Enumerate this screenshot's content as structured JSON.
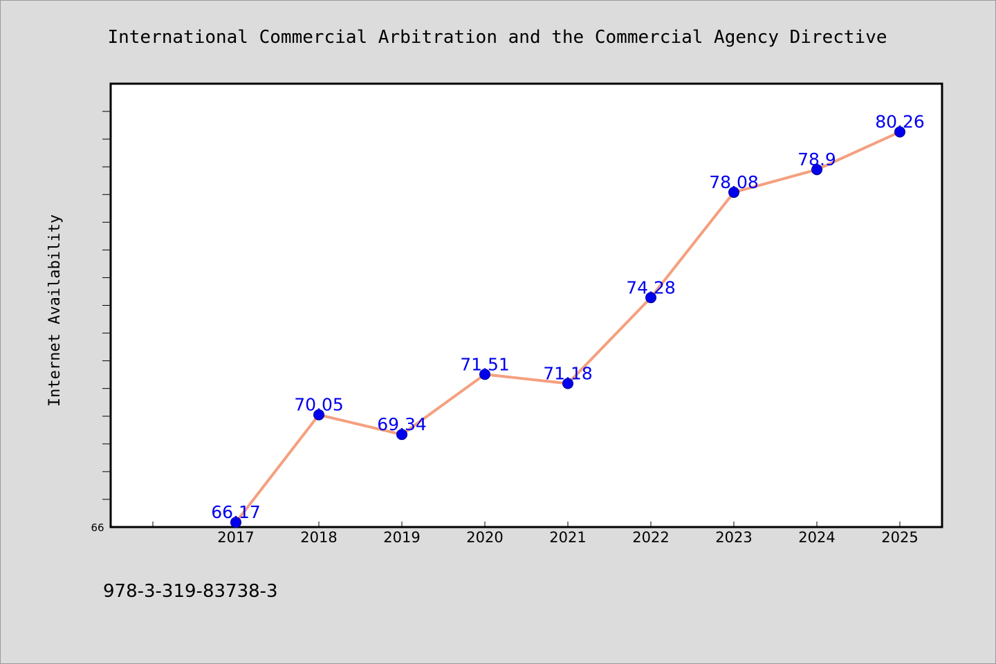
{
  "chart_data": {
    "type": "line",
    "title": "International Commercial Arbitration and the Commercial Agency Directive",
    "xlabel": "",
    "ylabel": "Internet Availability",
    "categories": [
      "2017",
      "2018",
      "2019",
      "2020",
      "2021",
      "2022",
      "2023",
      "2024",
      "2025"
    ],
    "series": [
      {
        "values": [
          66.17,
          70.05,
          69.34,
          71.51,
          71.18,
          74.28,
          78.08,
          78.9,
          80.26
        ],
        "data_labels": [
          "66.17",
          "70.05",
          "69.34",
          "71.51",
          "71.18",
          "74.28",
          "78.08",
          "78.9",
          "80.26"
        ],
        "line_color": "#f4a07f",
        "marker_color": "#0000ee"
      }
    ],
    "ylim": [
      66,
      82
    ],
    "ytick_labels": [
      "66"
    ],
    "grid": false,
    "legend": "none"
  },
  "footer": {
    "isbn": "978-3-319-83738-3"
  },
  "colors": {
    "background": "#dcdcdc",
    "plot_area": "#ffffff",
    "label_color": "#0000ee"
  }
}
